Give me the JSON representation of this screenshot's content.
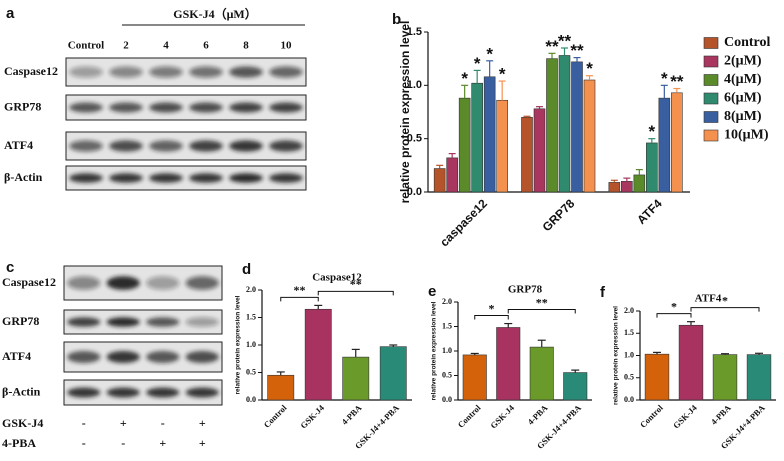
{
  "blots": [
    {
      "panel": "a",
      "title": "GSK-J4（μM）",
      "lanes": [
        "Control",
        "2",
        "4",
        "6",
        "8",
        "10"
      ],
      "rows": [
        "Caspase12",
        "GRP78",
        "ATF4",
        "β-Actin"
      ]
    },
    {
      "panel": "c",
      "rows": [
        "Caspase12",
        "GRP78",
        "ATF4",
        "β-Actin"
      ],
      "treatments": [
        {
          "name": "GSK-J4",
          "signs": [
            "-",
            "+",
            "-",
            "+"
          ]
        },
        {
          "name": "4-PBA",
          "signs": [
            "-",
            "-",
            "+",
            "+"
          ]
        }
      ]
    }
  ],
  "chart_data": [
    {
      "type": "grouped-bar",
      "panel": "b",
      "ylabel": "relative protein expression level",
      "categories": [
        "caspase12",
        "GRP78",
        "ATF4"
      ],
      "ylim": [
        0,
        1.5
      ],
      "yticks": [
        {
          "value": 0,
          "label": "0.0"
        },
        0.5,
        {
          "value": 1,
          "label": "1.0"
        },
        1.5
      ],
      "series": [
        {
          "name": "Control",
          "color": "#b5532a",
          "values": [
            0.22,
            0.7,
            0.09
          ],
          "errors": [
            0.03,
            0.01,
            0.02
          ]
        },
        {
          "name": "2(μM)",
          "color": "#a8365e",
          "values": [
            0.32,
            0.78,
            0.1
          ],
          "errors": [
            0.04,
            0.02,
            0.03
          ]
        },
        {
          "name": "4(μM)",
          "color": "#5a8a2a",
          "values": [
            0.88,
            1.25,
            0.16
          ],
          "errors": [
            0.12,
            0.05,
            0.05
          ],
          "significance": [
            "*",
            "**",
            null
          ]
        },
        {
          "name": "6(μM)",
          "color": "#2f8a6e",
          "values": [
            1.02,
            1.28,
            0.46
          ],
          "errors": [
            0.12,
            0.07,
            0.04
          ],
          "significance": [
            "*",
            "**",
            "*"
          ]
        },
        {
          "name": "8(μM)",
          "color": "#3a5fa0",
          "values": [
            1.08,
            1.22,
            0.88
          ],
          "errors": [
            0.15,
            0.04,
            0.12
          ],
          "significance": [
            "*",
            "**",
            "*"
          ]
        },
        {
          "name": "10(μM)",
          "color": "#f5914f",
          "values": [
            0.86,
            1.05,
            0.93
          ],
          "errors": [
            0.18,
            0.04,
            0.04
          ],
          "significance": [
            "*",
            "*",
            "**"
          ]
        }
      ]
    },
    {
      "type": "bar",
      "panel": "d",
      "title": "Caspase12",
      "ylabel": "relative protein expression level",
      "categories": [
        "Control",
        "GSK-J4",
        "4-PBA",
        "GSK-J4+4-PBA"
      ],
      "values": [
        0.45,
        1.65,
        0.78,
        0.97
      ],
      "errors": [
        0.06,
        0.07,
        0.14,
        0.03
      ],
      "colors": [
        "#d4620a",
        "#a83260",
        "#6a9a2a",
        "#2a8a78"
      ],
      "ylim": [
        0,
        2
      ],
      "yticks": [
        {
          "value": 0,
          "label": "0.0"
        },
        0.5,
        {
          "value": 1,
          "label": "1.0"
        },
        1.5,
        {
          "value": 2,
          "label": "2.0"
        }
      ],
      "comparisons": [
        {
          "between": [
            "Control",
            "GSK-J4"
          ],
          "label": "**"
        },
        {
          "between": [
            "GSK-J4",
            "GSK-J4+4-PBA"
          ],
          "label": "**"
        }
      ]
    },
    {
      "type": "bar",
      "panel": "e",
      "title": "GRP78",
      "ylabel": "relative protein expression level",
      "categories": [
        "Control",
        "GSK-J4",
        "4-PBA",
        "GSK-J4+4-PBA"
      ],
      "values": [
        0.92,
        1.48,
        1.08,
        0.56
      ],
      "errors": [
        0.03,
        0.08,
        0.14,
        0.05
      ],
      "colors": [
        "#d4620a",
        "#a83260",
        "#6a9a2a",
        "#2a8a78"
      ],
      "ylim": [
        0,
        2
      ],
      "yticks": [
        {
          "value": 0,
          "label": "0.0"
        },
        0.5,
        {
          "value": 1,
          "label": "1.0"
        },
        1.5,
        {
          "value": 2,
          "label": "2.0"
        }
      ],
      "comparisons": [
        {
          "between": [
            "Control",
            "GSK-J4"
          ],
          "label": "*"
        },
        {
          "between": [
            "GSK-J4",
            "GSK-J4+4-PBA"
          ],
          "label": "**"
        }
      ]
    },
    {
      "type": "bar",
      "panel": "f",
      "title": "ATF4",
      "ylabel": "relative protein expression level",
      "categories": [
        "Control",
        "GSK-J4",
        "4-PBA",
        "GSK-J4+4-PBA"
      ],
      "values": [
        1.03,
        1.68,
        1.02,
        1.02
      ],
      "errors": [
        0.04,
        0.08,
        0.02,
        0.03
      ],
      "colors": [
        "#d4620a",
        "#a83260",
        "#6a9a2a",
        "#2a8a78"
      ],
      "ylim": [
        0,
        2
      ],
      "yticks": [
        {
          "value": 0,
          "label": "0.0"
        },
        0.5,
        {
          "value": 1,
          "label": "1.0"
        },
        1.5,
        {
          "value": 2,
          "label": "2.0"
        }
      ],
      "comparisons": [
        {
          "between": [
            "Control",
            "GSK-J4"
          ],
          "label": "*"
        },
        {
          "between": [
            "GSK-J4",
            "GSK-J4+4-PBA"
          ],
          "label": "*"
        }
      ]
    }
  ]
}
